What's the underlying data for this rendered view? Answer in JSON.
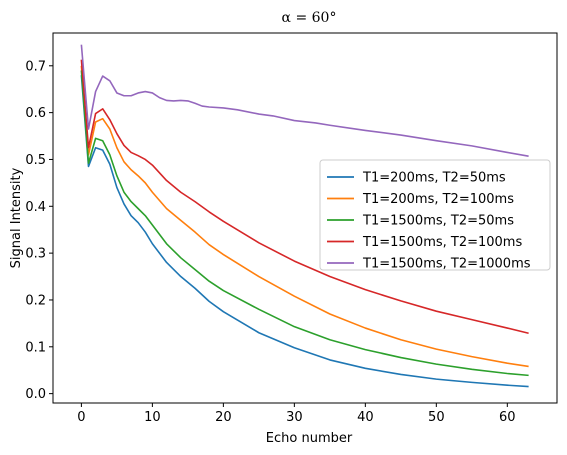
{
  "chart_data": {
    "type": "line",
    "title": "α = 60°",
    "xlabel": "Echo number",
    "ylabel": "Signal Intensity",
    "xlim": [
      -4,
      67
    ],
    "ylim": [
      -0.02,
      0.77
    ],
    "xticks": [
      0,
      10,
      20,
      30,
      40,
      50,
      60
    ],
    "yticks": [
      0.0,
      0.1,
      0.2,
      0.3,
      0.4,
      0.5,
      0.6,
      0.7
    ],
    "ytick_labels": [
      "0.0",
      "0.1",
      "0.2",
      "0.3",
      "0.4",
      "0.5",
      "0.6",
      "0.7"
    ],
    "grid": false,
    "legend_position": "center-right",
    "series": [
      {
        "name": "T1=200ms, T2=50ms",
        "color": "#1f77b4",
        "x": [
          0,
          1,
          2,
          3,
          4,
          5,
          6,
          7,
          8,
          9,
          10,
          12,
          14,
          16,
          18,
          20,
          25,
          30,
          35,
          40,
          45,
          50,
          55,
          60,
          63
        ],
        "y": [
          0.68,
          0.485,
          0.525,
          0.52,
          0.49,
          0.44,
          0.405,
          0.38,
          0.365,
          0.345,
          0.32,
          0.28,
          0.25,
          0.225,
          0.197,
          0.175,
          0.13,
          0.098,
          0.072,
          0.054,
          0.041,
          0.031,
          0.024,
          0.018,
          0.015
        ]
      },
      {
        "name": "T1=200ms, T2=100ms",
        "color": "#ff7f0e",
        "x": [
          0,
          1,
          2,
          3,
          4,
          5,
          6,
          7,
          8,
          9,
          10,
          12,
          14,
          16,
          18,
          20,
          25,
          30,
          35,
          40,
          45,
          50,
          55,
          60,
          63
        ],
        "y": [
          0.7,
          0.51,
          0.58,
          0.587,
          0.565,
          0.525,
          0.495,
          0.478,
          0.465,
          0.45,
          0.43,
          0.395,
          0.37,
          0.345,
          0.318,
          0.297,
          0.25,
          0.208,
          0.17,
          0.14,
          0.115,
          0.095,
          0.079,
          0.065,
          0.058
        ]
      },
      {
        "name": "T1=1500ms, T2=50ms",
        "color": "#2ca02c",
        "x": [
          0,
          1,
          2,
          3,
          4,
          5,
          6,
          7,
          8,
          9,
          10,
          12,
          14,
          16,
          18,
          20,
          25,
          30,
          35,
          40,
          45,
          50,
          55,
          60,
          63
        ],
        "y": [
          0.69,
          0.492,
          0.545,
          0.54,
          0.51,
          0.465,
          0.43,
          0.41,
          0.395,
          0.38,
          0.36,
          0.32,
          0.29,
          0.265,
          0.24,
          0.22,
          0.18,
          0.143,
          0.115,
          0.094,
          0.077,
          0.063,
          0.052,
          0.043,
          0.039
        ]
      },
      {
        "name": "T1=1500ms, T2=100ms",
        "color": "#d62728",
        "x": [
          0,
          1,
          2,
          3,
          4,
          5,
          6,
          7,
          8,
          9,
          10,
          12,
          14,
          16,
          18,
          20,
          25,
          30,
          35,
          40,
          45,
          50,
          55,
          60,
          63
        ],
        "y": [
          0.713,
          0.525,
          0.598,
          0.608,
          0.585,
          0.555,
          0.53,
          0.515,
          0.508,
          0.5,
          0.488,
          0.455,
          0.43,
          0.41,
          0.388,
          0.368,
          0.322,
          0.283,
          0.25,
          0.222,
          0.198,
          0.176,
          0.158,
          0.14,
          0.129
        ]
      },
      {
        "name": "T1=1500ms, T2=1000ms",
        "color": "#9467bd",
        "x": [
          0,
          1,
          2,
          3,
          4,
          5,
          6,
          7,
          8,
          9,
          10,
          11,
          12,
          13,
          14,
          15,
          16,
          17,
          18,
          20,
          22,
          25,
          27,
          30,
          33,
          35,
          40,
          45,
          50,
          55,
          60,
          63
        ],
        "y": [
          0.745,
          0.565,
          0.645,
          0.678,
          0.668,
          0.642,
          0.636,
          0.636,
          0.642,
          0.645,
          0.642,
          0.632,
          0.626,
          0.625,
          0.626,
          0.625,
          0.62,
          0.614,
          0.612,
          0.61,
          0.606,
          0.597,
          0.593,
          0.583,
          0.578,
          0.573,
          0.562,
          0.552,
          0.54,
          0.529,
          0.515,
          0.507
        ]
      }
    ]
  }
}
